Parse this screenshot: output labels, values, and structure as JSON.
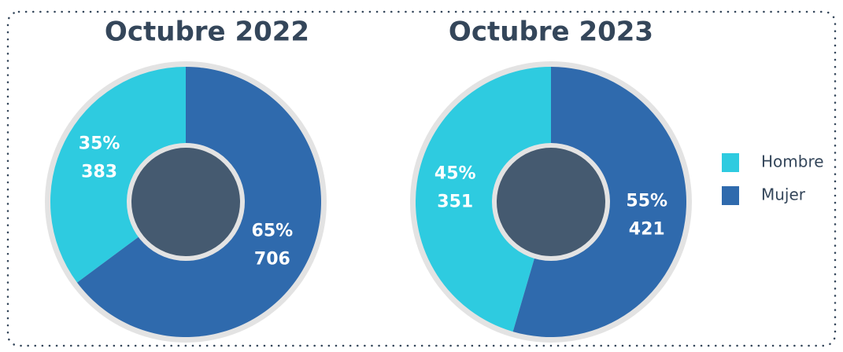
{
  "chart_data": [
    {
      "type": "pie",
      "title": "Octubre 2022",
      "categories": [
        "Hombre",
        "Mujer"
      ],
      "values": [
        383,
        706
      ],
      "shares": [
        35,
        65
      ],
      "share_labels": [
        "35%",
        "65%"
      ],
      "colors": [
        "#2ecbe0",
        "#2f6aad"
      ]
    },
    {
      "type": "pie",
      "title": "Octubre 2023",
      "categories": [
        "Hombre",
        "Mujer"
      ],
      "values": [
        351,
        421
      ],
      "shares": [
        45,
        55
      ],
      "share_labels": [
        "45%",
        "55%"
      ],
      "colors": [
        "#2ecbe0",
        "#2f6aad"
      ]
    }
  ]
}
